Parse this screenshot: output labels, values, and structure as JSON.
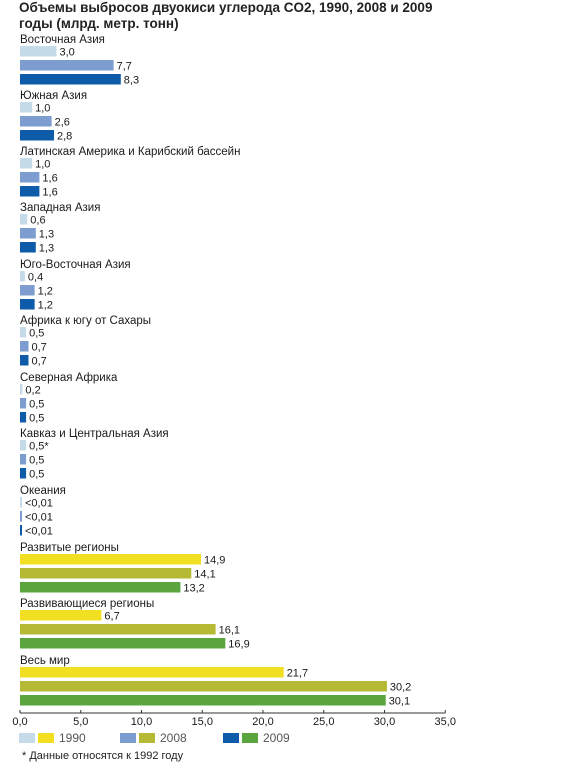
{
  "chart_data": {
    "type": "bar",
    "orientation": "horizontal",
    "title": "Объемы выбросов двуокиси углерода CO2, 1990, 2008 и 2009 годы (млрд. метр. тонн)",
    "xlim": [
      0,
      35
    ],
    "xticks": [
      "0,0",
      "5,0",
      "10,0",
      "15,0",
      "20,0",
      "25,0",
      "30,0",
      "35,0"
    ],
    "grid": false,
    "legend_position": "bottom",
    "series": [
      {
        "name": "1990",
        "colors": {
          "regional": "#c5dbea",
          "aggregate": "#f2df22"
        }
      },
      {
        "name": "2008",
        "colors": {
          "regional": "#7d9ccf",
          "aggregate": "#b5b933"
        }
      },
      {
        "name": "2009",
        "colors": {
          "regional": "#0e5ca9",
          "aggregate": "#5aa53d"
        }
      }
    ],
    "groups": [
      {
        "name": "Восточная Азия",
        "kind": "regional",
        "values": [
          3.0,
          7.7,
          8.3
        ],
        "labels": [
          "3,0",
          "7,7",
          "8,3"
        ]
      },
      {
        "name": "Южная Азия",
        "kind": "regional",
        "values": [
          1.0,
          2.6,
          2.8
        ],
        "labels": [
          "1,0",
          "2,6",
          "2,8"
        ]
      },
      {
        "name": "Латинская Америка и Карибский бассейн",
        "kind": "regional",
        "values": [
          1.0,
          1.6,
          1.6
        ],
        "labels": [
          "1,0",
          "1,6",
          "1,6"
        ]
      },
      {
        "name": "Западная Азия",
        "kind": "regional",
        "values": [
          0.6,
          1.3,
          1.3
        ],
        "labels": [
          "0,6",
          "1,3",
          "1,3"
        ]
      },
      {
        "name": "Юго-Восточная Азия",
        "kind": "regional",
        "values": [
          0.4,
          1.2,
          1.2
        ],
        "labels": [
          "0,4",
          "1,2",
          "1,2"
        ]
      },
      {
        "name": "Африка к югу от Сахары",
        "kind": "regional",
        "values": [
          0.5,
          0.7,
          0.7
        ],
        "labels": [
          "0,5",
          "0,7",
          "0,7"
        ]
      },
      {
        "name": "Северная Африка",
        "kind": "regional",
        "values": [
          0.2,
          0.5,
          0.5
        ],
        "labels": [
          "0,2",
          "0,5",
          "0,5"
        ]
      },
      {
        "name": "Кавказ и Центральная Азия",
        "kind": "regional",
        "values": [
          0.5,
          0.5,
          0.5
        ],
        "labels": [
          "0,5*",
          "0,5",
          "0,5"
        ]
      },
      {
        "name": "Океания",
        "kind": "regional",
        "values": [
          0.005,
          0.005,
          0.005
        ],
        "labels": [
          "<0,01",
          "<0,01",
          "<0,01"
        ]
      },
      {
        "name": "Развитые регионы",
        "kind": "aggregate",
        "values": [
          14.9,
          14.1,
          13.2
        ],
        "labels": [
          "14,9",
          "14,1",
          "13,2"
        ]
      },
      {
        "name": "Развивающиеся регионы",
        "kind": "aggregate",
        "values": [
          6.7,
          16.1,
          16.9
        ],
        "labels": [
          "6,7",
          "16,1",
          "16,9"
        ]
      },
      {
        "name": "Весь мир",
        "kind": "aggregate",
        "values": [
          21.7,
          30.2,
          30.1
        ],
        "labels": [
          "21,7",
          "30,2",
          "30,1"
        ]
      }
    ]
  },
  "footnote": "* Данные относятся к 1992 году"
}
